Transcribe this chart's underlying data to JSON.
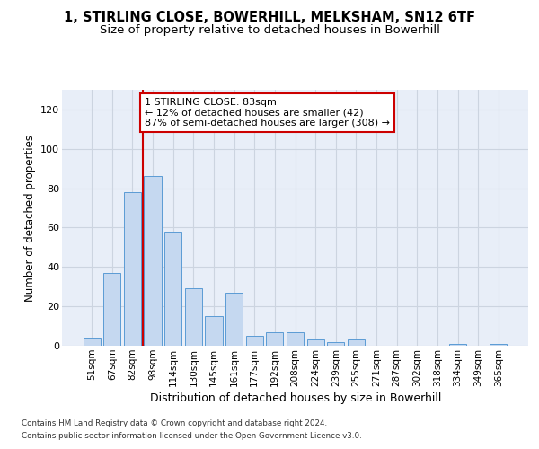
{
  "title": "1, STIRLING CLOSE, BOWERHILL, MELKSHAM, SN12 6TF",
  "subtitle": "Size of property relative to detached houses in Bowerhill",
  "xlabel": "Distribution of detached houses by size in Bowerhill",
  "ylabel": "Number of detached properties",
  "categories": [
    "51sqm",
    "67sqm",
    "82sqm",
    "98sqm",
    "114sqm",
    "130sqm",
    "145sqm",
    "161sqm",
    "177sqm",
    "192sqm",
    "208sqm",
    "224sqm",
    "239sqm",
    "255sqm",
    "271sqm",
    "287sqm",
    "302sqm",
    "318sqm",
    "334sqm",
    "349sqm",
    "365sqm"
  ],
  "values": [
    4,
    37,
    78,
    86,
    58,
    29,
    15,
    27,
    5,
    7,
    7,
    3,
    2,
    3,
    0,
    0,
    0,
    0,
    1,
    0,
    1
  ],
  "bar_color": "#c5d8f0",
  "bar_edge_color": "#5b9bd5",
  "vline_color": "#cc0000",
  "vline_x": 2.5,
  "annotation_text": "1 STIRLING CLOSE: 83sqm\n← 12% of detached houses are smaller (42)\n87% of semi-detached houses are larger (308) →",
  "annotation_box_facecolor": "#ffffff",
  "annotation_box_edgecolor": "#cc0000",
  "ylim": [
    0,
    130
  ],
  "yticks": [
    0,
    20,
    40,
    60,
    80,
    100,
    120
  ],
  "grid_color": "#ccd4e0",
  "background_color": "#e8eef8",
  "title_fontsize": 10.5,
  "subtitle_fontsize": 9.5,
  "ylabel_fontsize": 8.5,
  "xlabel_fontsize": 9,
  "tick_fontsize": 8,
  "annot_fontsize": 8,
  "footer_line1": "Contains HM Land Registry data © Crown copyright and database right 2024.",
  "footer_line2": "Contains public sector information licensed under the Open Government Licence v3.0."
}
